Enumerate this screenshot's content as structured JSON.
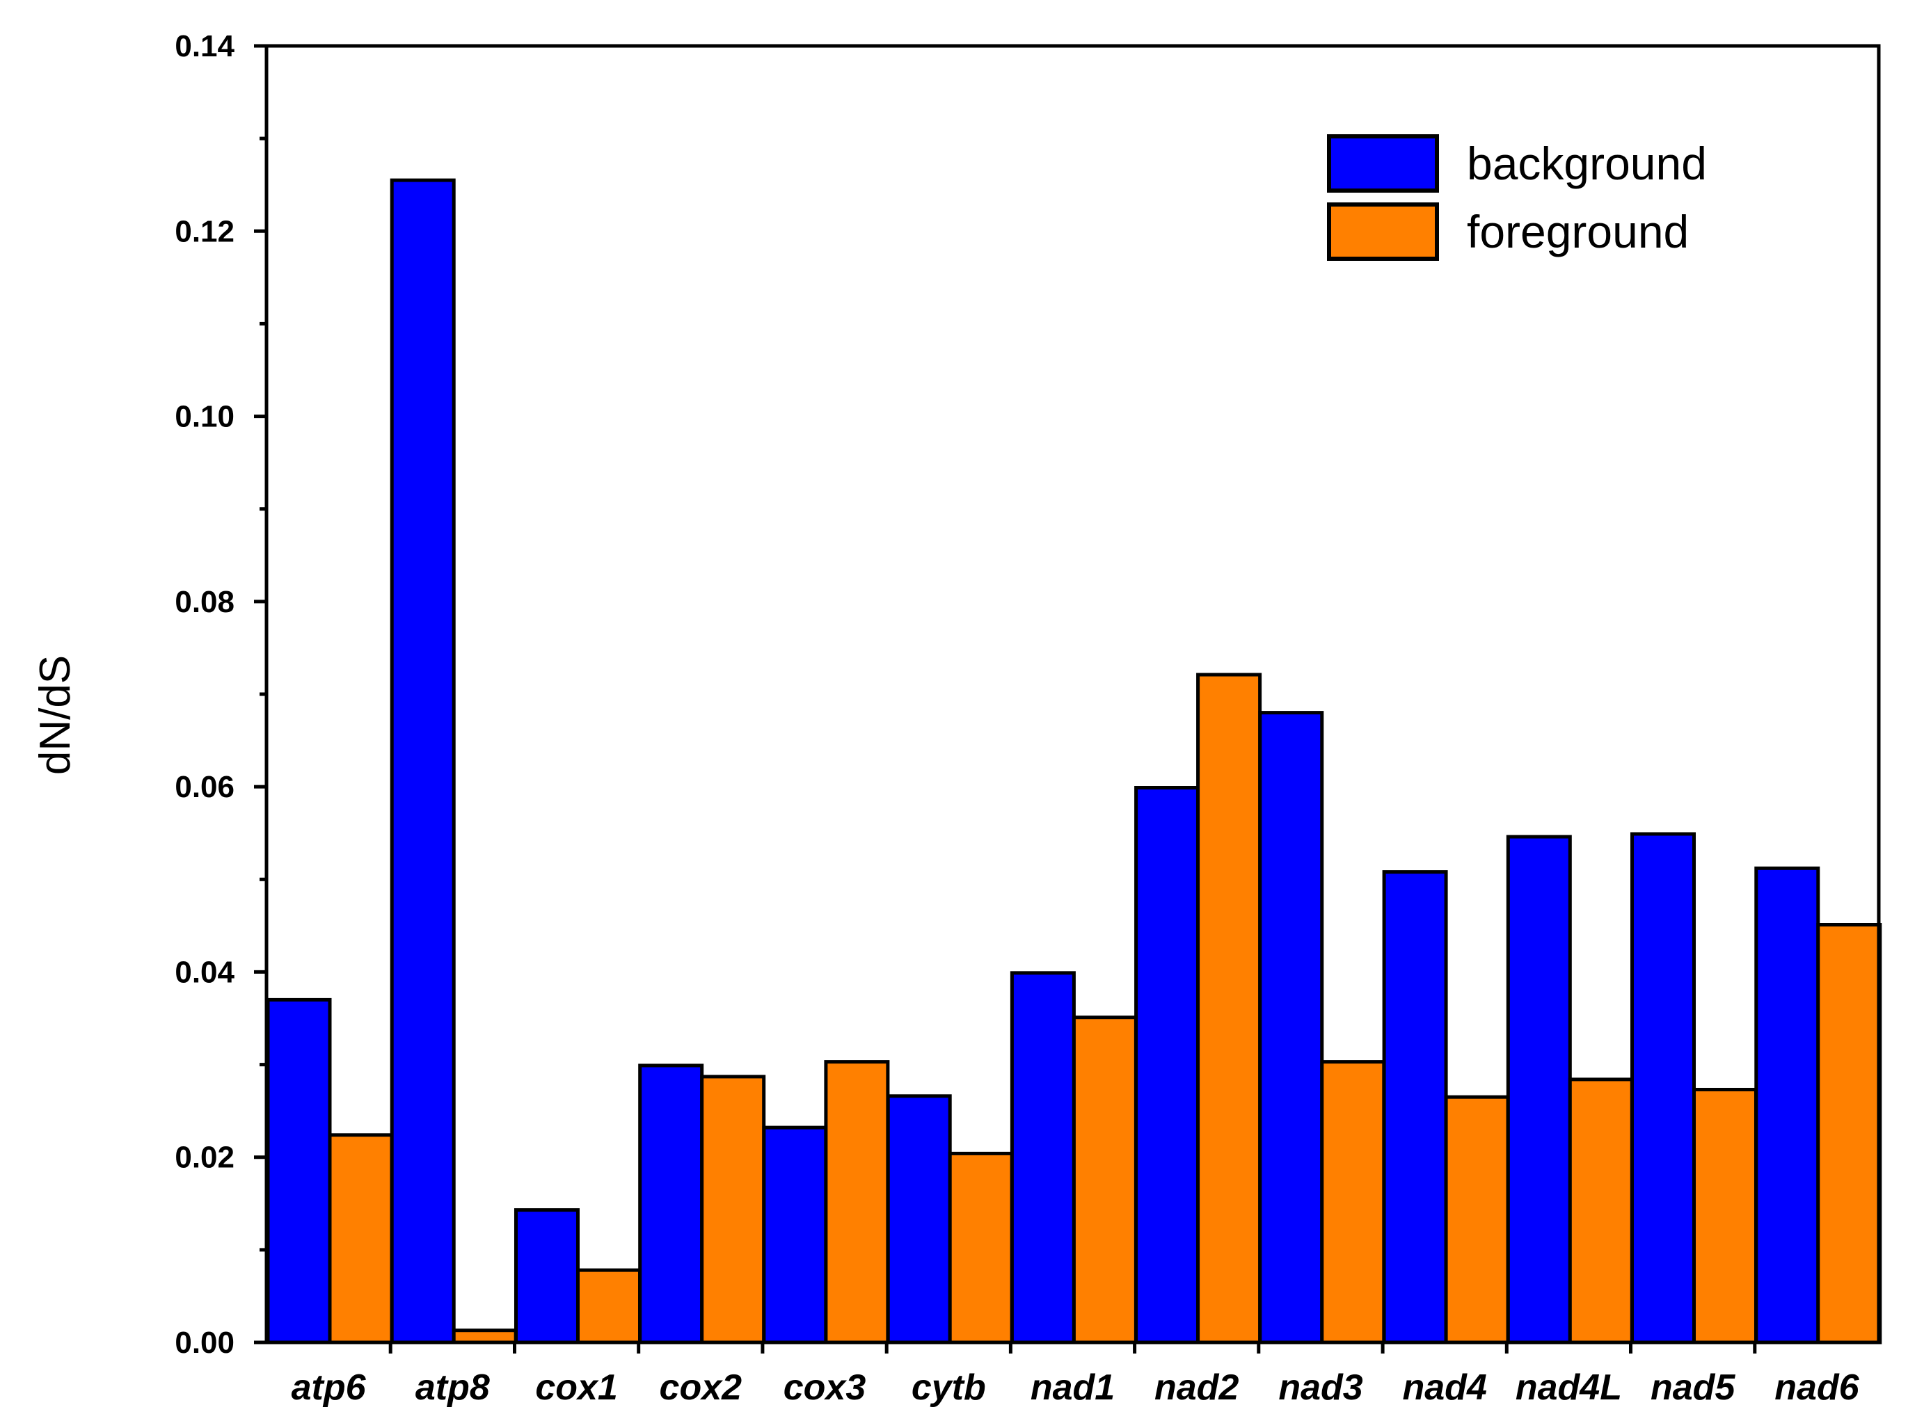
{
  "chart_data": {
    "type": "bar",
    "title": "",
    "xlabel": "",
    "ylabel": "dN/dS",
    "ylim": [
      0,
      0.14
    ],
    "yticks": [
      "0.00",
      "0.02",
      "0.04",
      "0.06",
      "0.08",
      "0.10",
      "0.12",
      "0.14"
    ],
    "grid": false,
    "legend_position": "top-right",
    "categories": [
      "atp6",
      "atp8",
      "cox1",
      "cox2",
      "cox3",
      "cytb",
      "nad1",
      "nad2",
      "nad3",
      "nad4",
      "nad4L",
      "nad5",
      "nad6"
    ],
    "series": [
      {
        "name": "background",
        "color": "#0000ff",
        "values": [
          0.037,
          0.1255,
          0.0143,
          0.0299,
          0.0232,
          0.0266,
          0.0399,
          0.0599,
          0.068,
          0.0508,
          0.0546,
          0.0549,
          0.0512
        ]
      },
      {
        "name": "foreground",
        "color": "#ff8000",
        "values": [
          0.0224,
          0.0013,
          0.0078,
          0.0287,
          0.0303,
          0.0204,
          0.0351,
          0.0721,
          0.0303,
          0.0265,
          0.0284,
          0.0273,
          0.0451
        ]
      }
    ]
  }
}
